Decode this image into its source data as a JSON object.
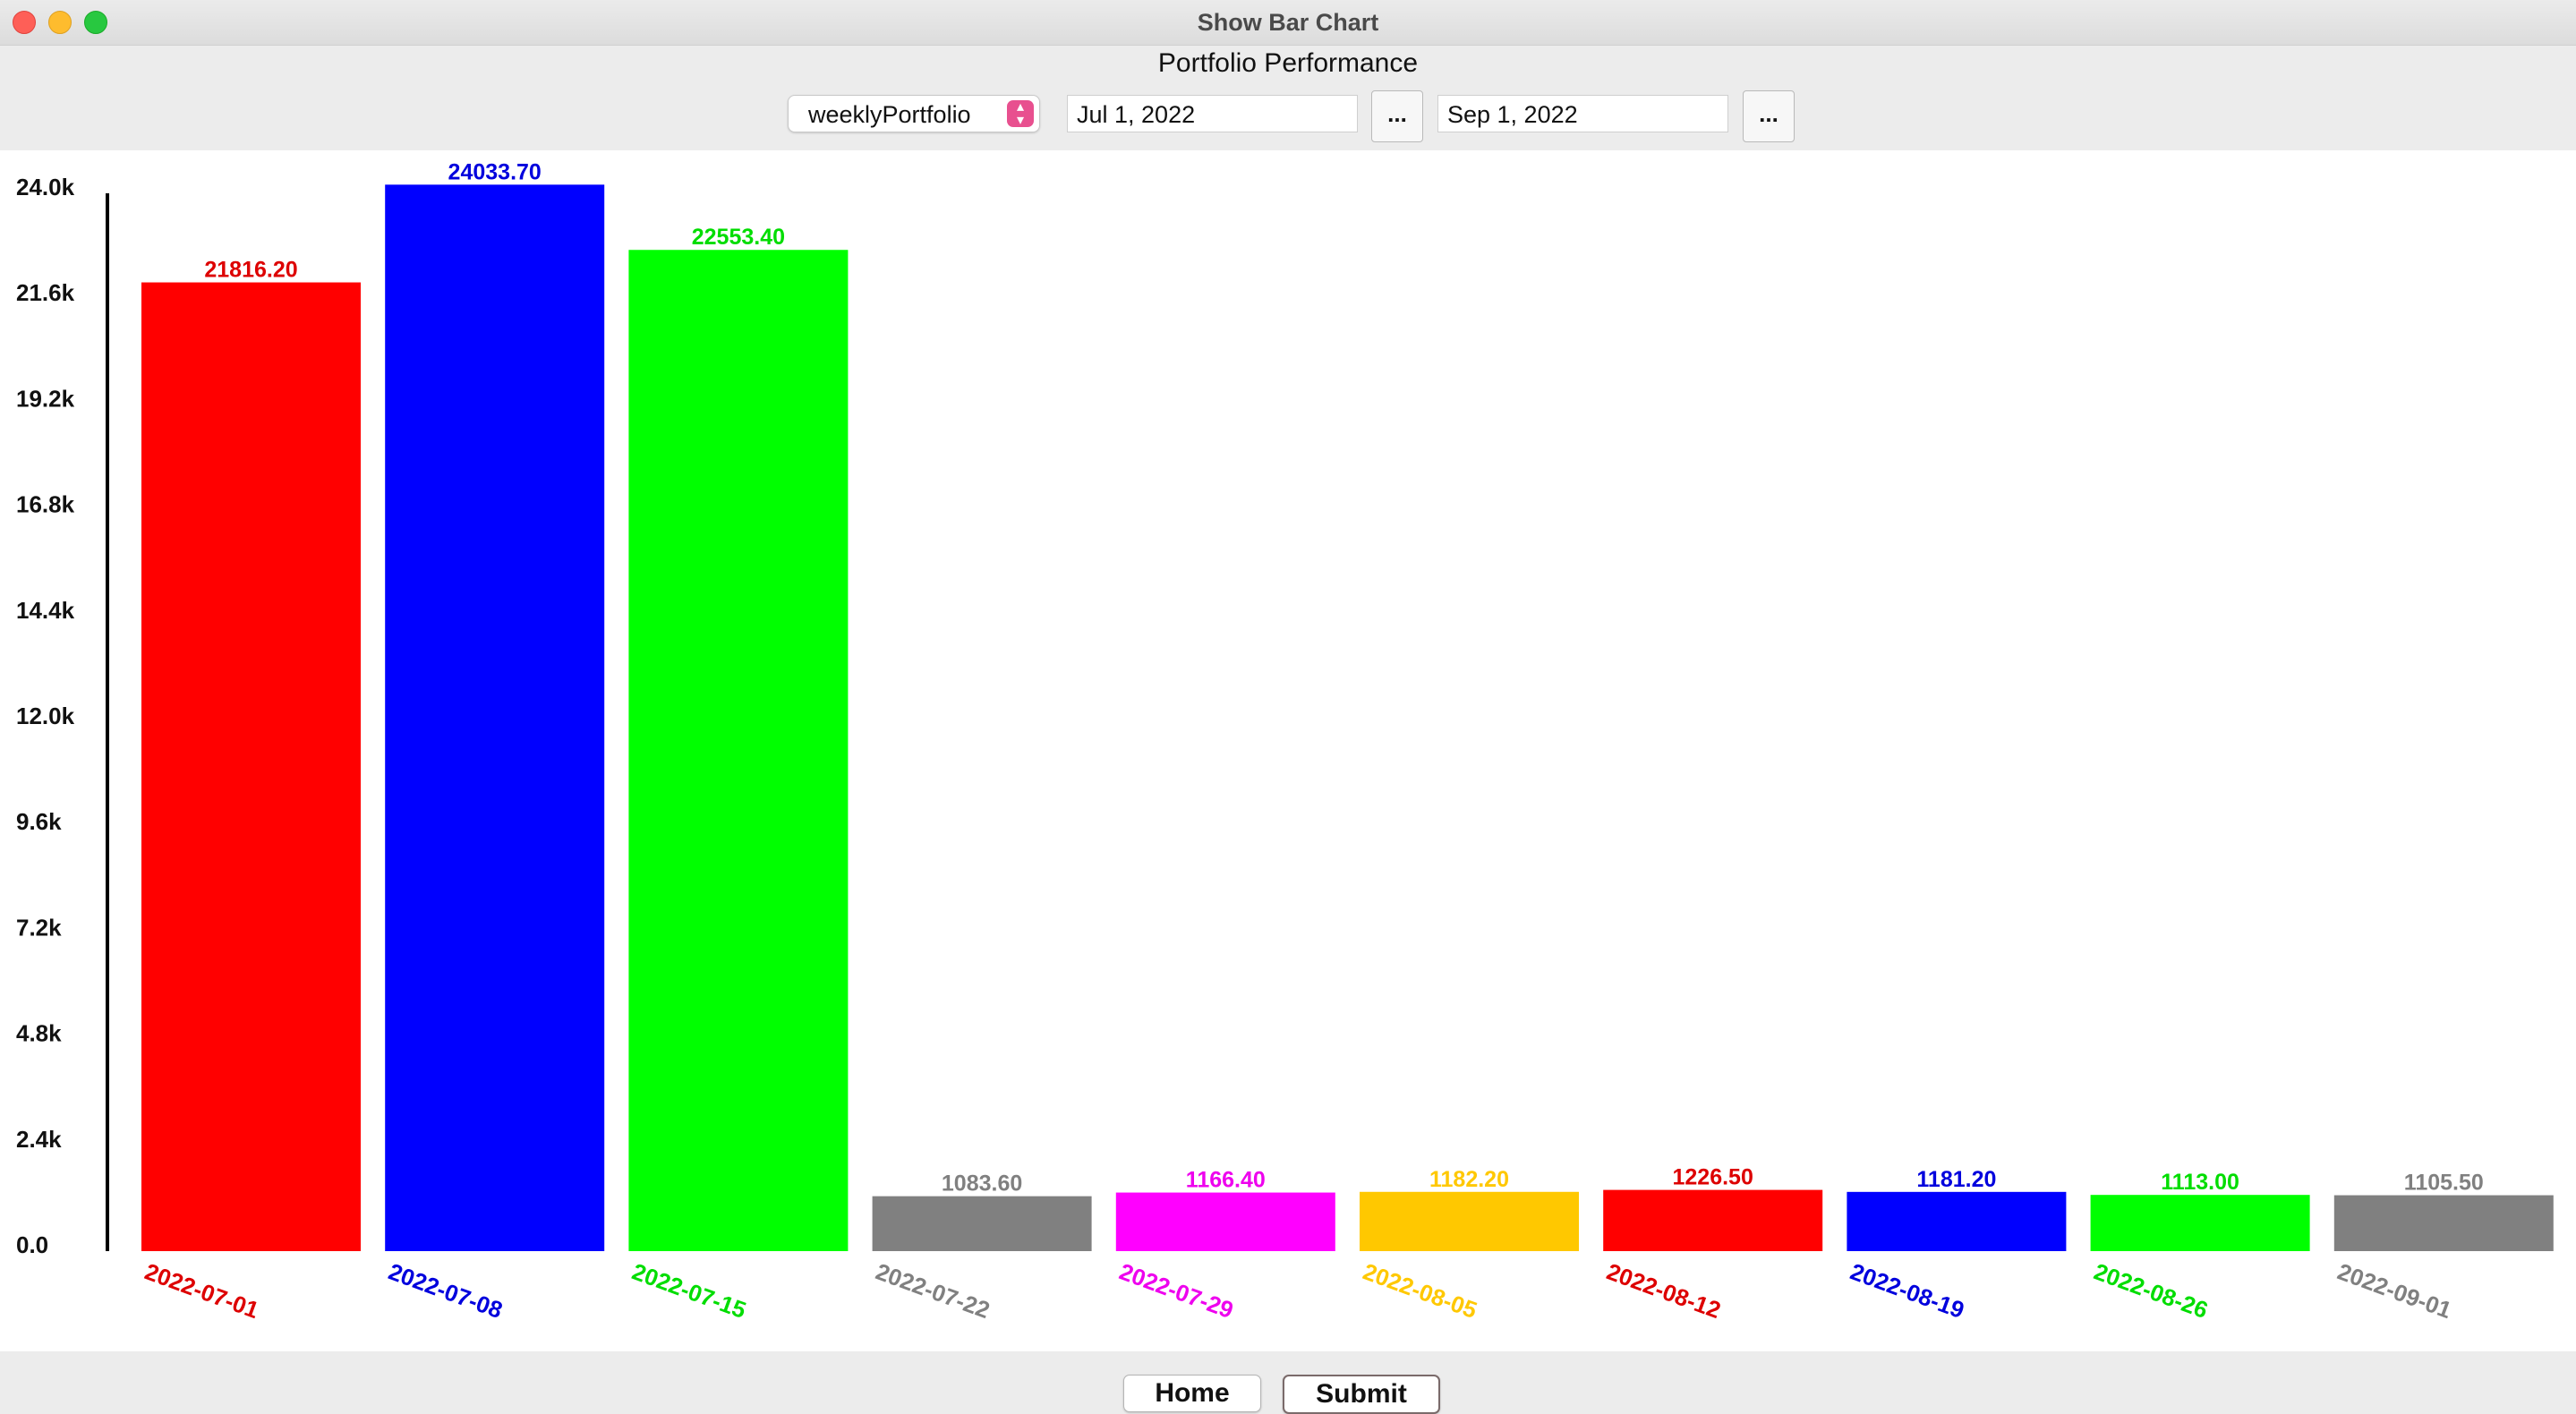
{
  "window": {
    "title": "Show Bar Chart"
  },
  "controls": {
    "portfolio_select": "weeklyPortfolio",
    "start_date": "Jul 1, 2022",
    "end_date": "Sep 1, 2022",
    "picker_label": "..."
  },
  "footer": {
    "home_label": "Home",
    "submit_label": "Submit"
  },
  "chart_data": {
    "type": "bar",
    "title": "Portfolio Performance",
    "xlabel": "",
    "ylabel": "",
    "ylim": [
      0,
      24000
    ],
    "yticks": [
      0,
      2400,
      4800,
      7200,
      9600,
      12000,
      14400,
      16800,
      19200,
      21600,
      24000
    ],
    "ytick_labels": [
      "0.0",
      "2.4k",
      "4.8k",
      "7.2k",
      "9.6k",
      "12.0k",
      "14.4k",
      "16.8k",
      "19.2k",
      "21.6k",
      "24.0k"
    ],
    "categories": [
      "2022-07-01",
      "2022-07-08",
      "2022-07-15",
      "2022-07-22",
      "2022-07-29",
      "2022-08-05",
      "2022-08-12",
      "2022-08-19",
      "2022-08-26",
      "2022-09-01"
    ],
    "values": [
      21816.2,
      24033.7,
      22553.4,
      1083.6,
      1166.4,
      1182.2,
      1226.5,
      1181.2,
      1113.0,
      1105.5
    ],
    "value_labels": [
      "21816.20",
      "24033.70",
      "22553.40",
      "1083.60",
      "1166.40",
      "1182.20",
      "1226.50",
      "1181.20",
      "1113.00",
      "1105.50"
    ],
    "colors": [
      "#ff0000",
      "#0000ff",
      "#00ff00",
      "#808080",
      "#ff00ff",
      "#ffc800",
      "#ff0000",
      "#0000ff",
      "#00ff00",
      "#808080"
    ],
    "label_colors": [
      "#dd0000",
      "#0000dd",
      "#00dd00",
      "#808080",
      "#ee00ee",
      "#ffc800",
      "#dd0000",
      "#0000dd",
      "#00dd00",
      "#808080"
    ],
    "grid": false
  }
}
